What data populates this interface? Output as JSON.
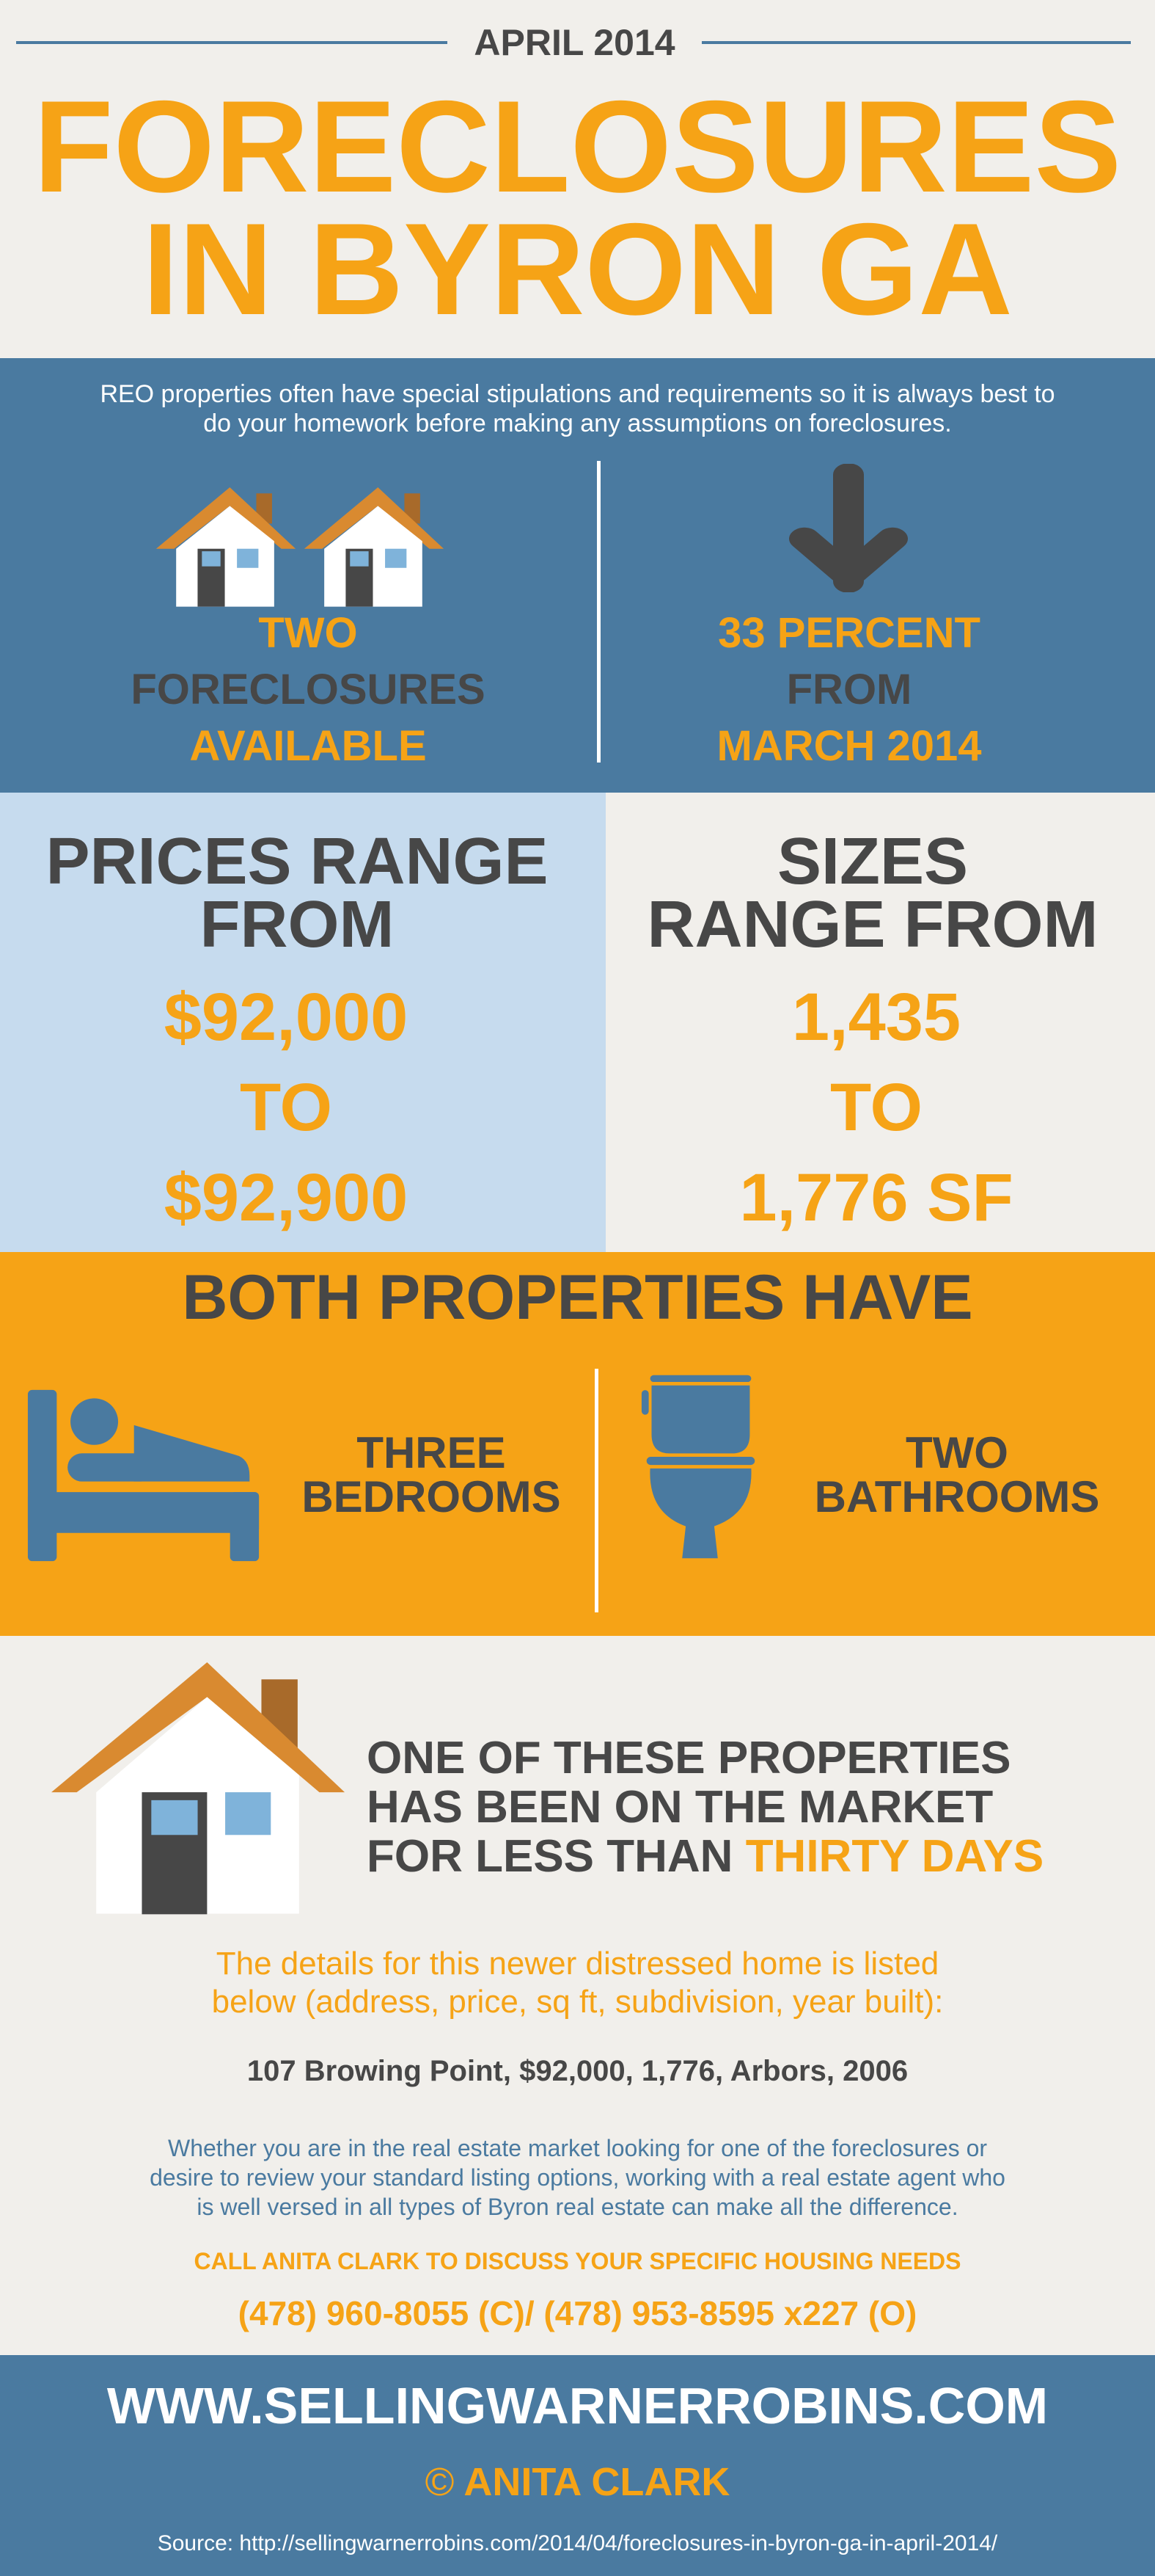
{
  "header": {
    "date": "APRIL 2014",
    "title_line1": "FORECLOSURES",
    "title_line2": "IN BYRON GA"
  },
  "intro": {
    "text_line1": "REO properties often have special stipulations and requirements so it is always best to",
    "text_line2": "do your homework before making any assumptions on foreclosures."
  },
  "stats": {
    "count": {
      "line1": "TWO",
      "line2": "FORECLOSURES",
      "line3": "AVAILABLE",
      "icon": "two-houses-icon"
    },
    "change": {
      "line1": "33 PERCENT",
      "line2": "FROM",
      "line3": "MARCH 2014",
      "icon": "arrow-down-icon"
    }
  },
  "prices": {
    "heading1": "PRICES RANGE",
    "heading2": "FROM",
    "low": "$92,000",
    "to": "TO",
    "high": "$92,900"
  },
  "sizes": {
    "heading1": "SIZES",
    "heading2": "RANGE FROM",
    "low": "1,435",
    "to": "TO",
    "high": "1,776 SF"
  },
  "features": {
    "heading": "BOTH PROPERTIES HAVE",
    "bedrooms_line1": "THREE",
    "bedrooms_line2": "BEDROOMS",
    "bathrooms_line1": "TWO",
    "bathrooms_line2": "BATHROOMS"
  },
  "newer": {
    "line1": "ONE OF THESE PROPERTIES",
    "line2": "HAS BEEN ON THE MARKET",
    "line3_prefix": "FOR LESS THAN ",
    "line3_highlight": "THIRTY DAYS",
    "details_line1": "The details for this newer distressed home is listed",
    "details_line2": "below (address, price, sq ft, subdivision, year built):",
    "listing": "107 Browing Point, $92,000, 1,776, Arbors, 2006",
    "pitch_line1": "Whether you are in the real estate market looking for one of the foreclosures or",
    "pitch_line2": "desire to review your standard listing options, working with a real estate agent who",
    "pitch_line3": "is well versed in all types of Byron real estate can make all the difference.",
    "cta": "CALL ANITA CLARK TO DISCUSS YOUR SPECIFIC HOUSING NEEDS",
    "phones": "(478) 960-8055 (C)/ (478) 953-8595 x227 (O)"
  },
  "footer": {
    "website": "WWW.SELLINGWARNERROBINS.COM",
    "copyright_symbol": "©",
    "author": "ANITA CLARK",
    "source": "Source: http://sellingwarnerrobins.com/2014/04/foreclosures-in-byron-ga-in-april-2014/"
  },
  "colors": {
    "beige": "#f1efeb",
    "blue": "#4a7aa0",
    "light_blue": "#c6dbee",
    "orange": "#f6a316",
    "dark": "#474747"
  }
}
